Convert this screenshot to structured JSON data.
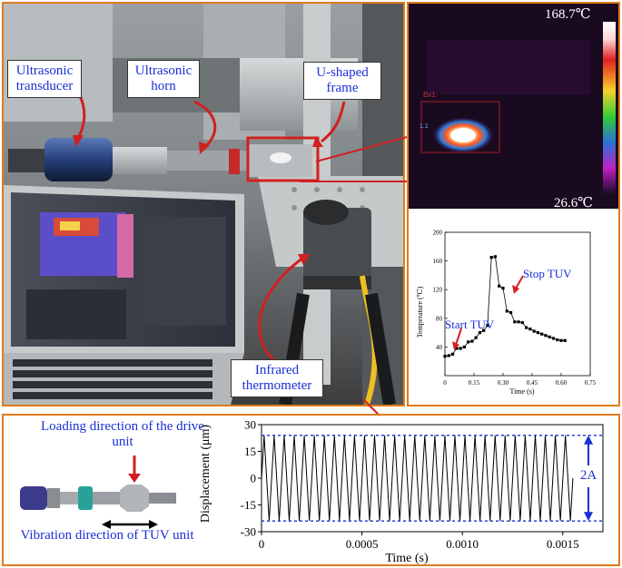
{
  "photo_labels": {
    "transducer": "Ultrasonic transducer",
    "horn": "Ultrasonic horn",
    "frame": "U-shaped frame",
    "thermometer": "Infrared thermometer"
  },
  "thermal": {
    "max_label": "168.7℃",
    "min_label": "26.6℃",
    "box_label": "Bx1",
    "marker_label": "1.1"
  },
  "temp_chart": {
    "type": "line",
    "ylabel": "Temperature (℃)",
    "xlabel": "Time (s)",
    "xlim": [
      0,
      0.75
    ],
    "ylim": [
      0,
      200
    ],
    "x_ticks": [
      "0",
      "0.15",
      "0.30",
      "0.45",
      "0.60",
      "0.75"
    ],
    "y_ticks": [
      "40",
      "80",
      "120",
      "160",
      "200"
    ],
    "annotations": {
      "start": "Start TUV",
      "stop": "Stop TUV"
    },
    "x": [
      0.0,
      0.02,
      0.04,
      0.06,
      0.08,
      0.1,
      0.12,
      0.14,
      0.16,
      0.18,
      0.2,
      0.22,
      0.24,
      0.26,
      0.28,
      0.3,
      0.32,
      0.34,
      0.36,
      0.38,
      0.4,
      0.42,
      0.44,
      0.46,
      0.48,
      0.5,
      0.52,
      0.54,
      0.56,
      0.58,
      0.6,
      0.62
    ],
    "y": [
      27,
      28,
      30,
      38,
      38,
      40,
      47,
      48,
      53,
      60,
      63,
      70,
      165,
      166,
      125,
      122,
      90,
      88,
      75,
      75,
      74,
      67,
      65,
      62,
      60,
      58,
      56,
      54,
      52,
      50,
      49,
      49
    ]
  },
  "displacement_chart": {
    "type": "line",
    "ylabel": "Displacement (μm)",
    "xlabel": "Time (s)",
    "xlim": [
      0,
      0.0017
    ],
    "ylim": [
      -30,
      30
    ],
    "x_ticks": [
      "0",
      "0.0005",
      "0.0010",
      "0.0015"
    ],
    "y_ticks": [
      "30",
      "15",
      "0",
      "-15",
      "-30"
    ],
    "amplitude": 24,
    "cycles": 31,
    "duration": 0.00155,
    "amplitude_label": "2A"
  },
  "unit_labels": {
    "loading": "Loading direction of the drive unit",
    "vibration": "Vibration direction of TUV unit"
  },
  "colors": {
    "accent": "#e07b1e",
    "label": "#1a2fd6",
    "dashed": "#1a2fd6",
    "arrow_red": "#d22020"
  }
}
